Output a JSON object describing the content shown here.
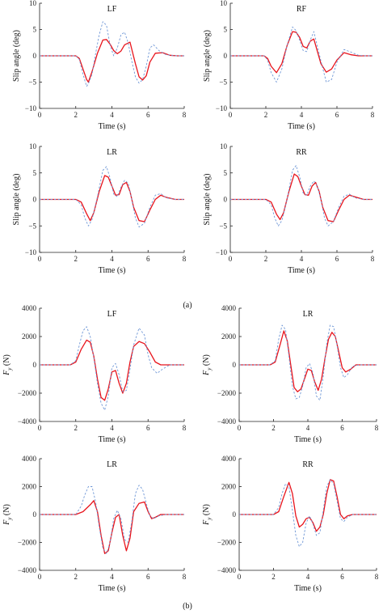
{
  "figure": {
    "caption_a": "(a)",
    "caption_b": "(b)",
    "colors": {
      "solid": "#e8141c",
      "dashed": "#6f97d6",
      "axis": "#222222"
    }
  },
  "chart_data": [
    {
      "type": "line",
      "title": "LF",
      "xlabel": "Time (s)",
      "ylabel": "Slip angle (deg)",
      "xlim": [
        0,
        8
      ],
      "ylim": [
        -10,
        10
      ],
      "xticks": [
        0,
        2,
        4,
        6,
        8
      ],
      "yticks": [
        -10,
        -5,
        0,
        5,
        10
      ],
      "series": [
        {
          "style": "solid",
          "x": [
            0,
            2,
            2.2,
            2.4,
            2.6,
            2.7,
            2.9,
            3.2,
            3.5,
            3.7,
            3.9,
            4.1,
            4.3,
            4.5,
            4.7,
            5,
            5.3,
            5.5,
            5.7,
            5.9,
            6.1,
            6.4,
            6.8,
            7.2,
            7.6,
            8
          ],
          "y": [
            0,
            0,
            -0.5,
            -2.5,
            -4.5,
            -5,
            -3,
            0.5,
            3,
            3.1,
            2.2,
            1,
            0.4,
            0.9,
            2.1,
            2.6,
            -1.5,
            -4,
            -4.6,
            -3.8,
            -1.2,
            0.5,
            0.6,
            0.1,
            0,
            0
          ]
        },
        {
          "style": "dashed",
          "x": [
            0,
            2,
            2.2,
            2.4,
            2.6,
            2.7,
            2.9,
            3.1,
            3.3,
            3.5,
            3.7,
            3.9,
            4.1,
            4.3,
            4.5,
            4.7,
            4.9,
            5.1,
            5.3,
            5.5,
            5.7,
            5.9,
            6.1,
            6.3,
            6.6,
            7,
            7.5,
            8
          ],
          "y": [
            0,
            0,
            -0.7,
            -3.5,
            -5.8,
            -5.3,
            -3.5,
            0.5,
            4,
            6.5,
            5.8,
            2,
            0,
            1.5,
            4,
            4.5,
            2.5,
            -1,
            -4,
            -5.2,
            -4.5,
            -2,
            1.5,
            2.1,
            1,
            0.2,
            0,
            0
          ]
        }
      ]
    },
    {
      "type": "line",
      "title": "RF",
      "xlabel": "Time (s)",
      "ylabel": "Slip angle (deg)",
      "xlim": [
        0,
        8
      ],
      "ylim": [
        -10,
        10
      ],
      "xticks": [
        0,
        2,
        4,
        6,
        8
      ],
      "yticks": [
        -10,
        -5,
        0,
        5,
        10
      ],
      "series": [
        {
          "style": "solid",
          "x": [
            0,
            1.9,
            2.1,
            2.3,
            2.6,
            2.9,
            3.2,
            3.5,
            3.7,
            3.9,
            4.1,
            4.3,
            4.5,
            4.7,
            5.1,
            5.4,
            5.7,
            6,
            6.4,
            6.8,
            7.2,
            7.6,
            8
          ],
          "y": [
            0,
            0,
            -0.5,
            -2,
            -3.2,
            -1.5,
            2,
            4.6,
            4.5,
            3.5,
            1.8,
            1.5,
            2.8,
            3.2,
            -1.5,
            -3.1,
            -2.5,
            -0.8,
            0.6,
            0.2,
            0,
            0,
            0
          ]
        },
        {
          "style": "dashed",
          "x": [
            0,
            1.9,
            2.1,
            2.3,
            2.6,
            2.9,
            3.2,
            3.5,
            3.7,
            3.9,
            4.1,
            4.3,
            4.5,
            4.7,
            5.1,
            5.4,
            5.7,
            6,
            6.4,
            6.8,
            7.2,
            7.6,
            8
          ],
          "y": [
            0,
            0,
            -0.8,
            -3.2,
            -5,
            -2.5,
            2,
            5.5,
            4.8,
            3,
            1,
            0.8,
            3,
            4.6,
            -1,
            -5,
            -4.5,
            -1.2,
            1.2,
            0.7,
            0.1,
            0,
            0
          ]
        }
      ]
    },
    {
      "type": "line",
      "title": "LR",
      "xlabel": "Time (s)",
      "ylabel": "Slip angle (deg)",
      "xlim": [
        0,
        8
      ],
      "ylim": [
        -10,
        10
      ],
      "xticks": [
        0,
        2,
        4,
        6,
        8
      ],
      "yticks": [
        -10,
        -5,
        0,
        5,
        10
      ],
      "series": [
        {
          "style": "solid",
          "x": [
            0,
            2,
            2.3,
            2.6,
            2.8,
            3,
            3.3,
            3.6,
            3.8,
            4,
            4.2,
            4.4,
            4.6,
            4.8,
            5,
            5.2,
            5.5,
            5.8,
            6.1,
            6.4,
            6.7,
            7,
            7.5,
            8
          ],
          "y": [
            0,
            0,
            -0.5,
            -2.7,
            -4,
            -2.5,
            1.5,
            4.5,
            4.2,
            2.5,
            0.8,
            0.9,
            2.8,
            3.2,
            1.5,
            -1.5,
            -4,
            -4.2,
            -2,
            0,
            0.8,
            0.4,
            0,
            0
          ]
        },
        {
          "style": "dashed",
          "x": [
            0,
            2,
            2.3,
            2.5,
            2.7,
            2.9,
            3.2,
            3.5,
            3.7,
            3.9,
            4.1,
            4.3,
            4.5,
            4.7,
            4.9,
            5.1,
            5.3,
            5.5,
            5.8,
            6.1,
            6.4,
            6.7,
            7,
            7.5,
            8
          ],
          "y": [
            0,
            0,
            -1,
            -3.5,
            -5,
            -3.8,
            0.5,
            5.5,
            6.2,
            4,
            1,
            0.5,
            2.3,
            3.6,
            3.1,
            0,
            -3.5,
            -5.2,
            -4.5,
            -1.5,
            0.8,
            1.1,
            0.3,
            0,
            0
          ]
        }
      ]
    },
    {
      "type": "line",
      "title": "RR",
      "xlabel": "Time (s)",
      "ylabel": "Slip angle (deg)",
      "xlim": [
        0,
        8
      ],
      "ylim": [
        -10,
        10
      ],
      "xticks": [
        0,
        2,
        4,
        6,
        8
      ],
      "yticks": [
        -10,
        -5,
        0,
        5,
        10
      ],
      "series": [
        {
          "style": "solid",
          "x": [
            0,
            2,
            2.3,
            2.6,
            2.8,
            3,
            3.3,
            3.6,
            3.8,
            4,
            4.2,
            4.4,
            4.6,
            4.8,
            5,
            5.2,
            5.5,
            5.8,
            6.1,
            6.4,
            6.7,
            7,
            7.5,
            8
          ],
          "y": [
            0,
            0,
            -0.5,
            -2.8,
            -3.8,
            -2.5,
            1.5,
            4.8,
            4.3,
            2.5,
            0.9,
            0.8,
            2.5,
            3.2,
            1.5,
            -1.5,
            -4,
            -4.2,
            -2,
            0,
            0.8,
            0.5,
            0,
            0
          ]
        },
        {
          "style": "dashed",
          "x": [
            0,
            2,
            2.3,
            2.5,
            2.7,
            2.9,
            3.2,
            3.5,
            3.7,
            3.9,
            4.1,
            4.3,
            4.5,
            4.7,
            4.9,
            5.1,
            5.3,
            5.5,
            5.8,
            6.1,
            6.4,
            6.7,
            7,
            7.5,
            8
          ],
          "y": [
            0,
            0,
            -1,
            -3.5,
            -5,
            -4,
            0,
            5.5,
            6.4,
            4.3,
            1.2,
            0.8,
            2.5,
            3.5,
            2.5,
            0,
            -3.5,
            -5,
            -4.2,
            -1.5,
            0.6,
            1,
            0.3,
            0,
            0
          ]
        }
      ]
    },
    {
      "type": "line",
      "title": "LF",
      "xlabel": "Time (s)",
      "ylabel": "F_y (N)",
      "xlim": [
        0,
        8
      ],
      "ylim": [
        -4000,
        4000
      ],
      "xticks": [
        0,
        2,
        4,
        6,
        8
      ],
      "yticks": [
        -4000,
        -2000,
        0,
        2000,
        4000
      ],
      "series": [
        {
          "style": "solid",
          "x": [
            0,
            1.7,
            2,
            2.3,
            2.6,
            2.8,
            3,
            3.2,
            3.4,
            3.6,
            3.8,
            4,
            4.2,
            4.4,
            4.6,
            4.8,
            5,
            5.2,
            5.5,
            5.8,
            6.1,
            6.4,
            6.7,
            7,
            7.5,
            8
          ],
          "y": [
            0,
            0,
            200,
            1100,
            1750,
            1600,
            600,
            -1000,
            -2300,
            -2500,
            -1700,
            -500,
            -400,
            -1300,
            -2000,
            -1300,
            200,
            1300,
            1650,
            1500,
            900,
            200,
            0,
            0,
            0,
            0
          ]
        },
        {
          "style": "dashed",
          "x": [
            0,
            1.7,
            2,
            2.2,
            2.4,
            2.6,
            2.8,
            3,
            3.2,
            3.4,
            3.6,
            3.8,
            4,
            4.2,
            4.4,
            4.6,
            4.8,
            5,
            5.2,
            5.5,
            5.8,
            6,
            6.2,
            6.5,
            6.8,
            7.2,
            7.6,
            8
          ],
          "y": [
            0,
            0,
            300,
            1400,
            2400,
            2700,
            2000,
            500,
            -1300,
            -2700,
            -3200,
            -2200,
            -200,
            100,
            -700,
            -1900,
            -1800,
            -300,
            1400,
            2600,
            2100,
            700,
            -200,
            -600,
            -300,
            0,
            0,
            0
          ]
        }
      ]
    },
    {
      "type": "line",
      "title": "LR",
      "xlabel": "Time (s)",
      "ylabel": "F_y (N)",
      "xlim": [
        0,
        8
      ],
      "ylim": [
        -4000,
        4000
      ],
      "xticks": [
        0,
        2,
        4,
        6,
        8
      ],
      "yticks": [
        -4000,
        -2000,
        0,
        2000,
        4000
      ],
      "series": [
        {
          "style": "solid",
          "x": [
            0,
            1.8,
            2.1,
            2.4,
            2.6,
            2.8,
            3,
            3.2,
            3.4,
            3.6,
            3.8,
            4,
            4.2,
            4.4,
            4.6,
            4.8,
            5,
            5.2,
            5.4,
            5.6,
            5.8,
            6,
            6.2,
            6.5,
            6.8,
            7.2,
            7.6,
            8
          ],
          "y": [
            0,
            0,
            200,
            1500,
            2400,
            1700,
            0,
            -1600,
            -1900,
            -1700,
            -1000,
            -300,
            -400,
            -1200,
            -1800,
            -1000,
            500,
            1800,
            2300,
            2000,
            900,
            -200,
            -500,
            -300,
            0,
            0,
            0,
            0
          ]
        },
        {
          "style": "dashed",
          "x": [
            0,
            1.8,
            2.1,
            2.3,
            2.5,
            2.7,
            2.9,
            3.1,
            3.3,
            3.5,
            3.7,
            3.9,
            4.1,
            4.3,
            4.5,
            4.7,
            4.9,
            5.1,
            5.3,
            5.5,
            5.7,
            5.9,
            6.1,
            6.3,
            6.6,
            7,
            7.5,
            8
          ],
          "y": [
            0,
            0,
            300,
            1800,
            2800,
            2500,
            600,
            -1500,
            -2400,
            -2300,
            -1500,
            -200,
            100,
            -600,
            -2200,
            -2500,
            -800,
            1500,
            2800,
            2700,
            1400,
            -200,
            -900,
            -700,
            -100,
            0,
            0,
            0
          ]
        }
      ]
    },
    {
      "type": "line",
      "title": "LR",
      "xlabel": "Time (s)",
      "ylabel": "F_y (N)",
      "xlim": [
        0,
        8
      ],
      "ylim": [
        -4000,
        4000
      ],
      "xticks": [
        0,
        2,
        4,
        6,
        8
      ],
      "yticks": [
        -4000,
        -2000,
        0,
        2000,
        4000
      ],
      "series": [
        {
          "style": "solid",
          "x": [
            0,
            2,
            2.4,
            2.8,
            3,
            3.2,
            3.4,
            3.6,
            3.8,
            4,
            4.2,
            4.4,
            4.6,
            4.8,
            5,
            5.2,
            5.5,
            5.8,
            6,
            6.2,
            6.4,
            6.7,
            7,
            7.5,
            8
          ],
          "y": [
            0,
            0,
            200,
            700,
            1000,
            200,
            -1500,
            -2800,
            -2600,
            -1300,
            -200,
            0,
            -1500,
            -2600,
            -1700,
            200,
            800,
            900,
            200,
            -300,
            -200,
            0,
            0,
            0,
            0
          ]
        },
        {
          "style": "dashed",
          "x": [
            0,
            2,
            2.3,
            2.5,
            2.7,
            2.9,
            3.1,
            3.3,
            3.5,
            3.7,
            3.9,
            4.1,
            4.3,
            4.5,
            4.7,
            4.9,
            5.1,
            5.3,
            5.5,
            5.7,
            5.9,
            6.1,
            6.3,
            6.6,
            7,
            7.5,
            8
          ],
          "y": [
            0,
            0,
            600,
            1400,
            2000,
            2000,
            900,
            -900,
            -2400,
            -2800,
            -2000,
            -300,
            300,
            -300,
            -1800,
            -2000,
            -500,
            1500,
            2100,
            1800,
            800,
            -100,
            -300,
            -100,
            0,
            0,
            0
          ]
        }
      ]
    },
    {
      "type": "line",
      "title": "RR",
      "xlabel": "Time (s)",
      "ylabel": "F_y (N)",
      "xlim": [
        0,
        8
      ],
      "ylim": [
        -4000,
        4000
      ],
      "xticks": [
        0,
        2,
        4,
        6,
        8
      ],
      "yticks": [
        -4000,
        -2000,
        0,
        2000,
        4000
      ],
      "series": [
        {
          "style": "solid",
          "x": [
            0,
            2,
            2.3,
            2.6,
            2.9,
            3.1,
            3.3,
            3.5,
            3.7,
            3.9,
            4.1,
            4.3,
            4.5,
            4.7,
            4.9,
            5.1,
            5.3,
            5.5,
            5.7,
            5.9,
            6.1,
            6.3,
            6.6,
            7,
            7.5,
            8
          ],
          "y": [
            0,
            0,
            200,
            1300,
            2300,
            1500,
            -100,
            -900,
            -700,
            -300,
            -200,
            -600,
            -1200,
            -900,
            0,
            1500,
            2500,
            2400,
            1300,
            0,
            -300,
            -100,
            0,
            0,
            0,
            0
          ]
        },
        {
          "style": "dashed",
          "x": [
            0,
            2,
            2.3,
            2.5,
            2.7,
            2.9,
            3.1,
            3.3,
            3.5,
            3.7,
            3.9,
            4.1,
            4.3,
            4.5,
            4.7,
            4.9,
            5.1,
            5.3,
            5.5,
            5.7,
            5.9,
            6.1,
            6.3,
            6.6,
            7,
            7.5,
            8
          ],
          "y": [
            0,
            0,
            500,
            1500,
            2200,
            2000,
            300,
            -1500,
            -2300,
            -2000,
            -600,
            -100,
            -700,
            -1500,
            -1300,
            300,
            2000,
            2500,
            2200,
            1000,
            -300,
            -500,
            -200,
            0,
            0,
            0,
            0
          ]
        }
      ]
    }
  ]
}
